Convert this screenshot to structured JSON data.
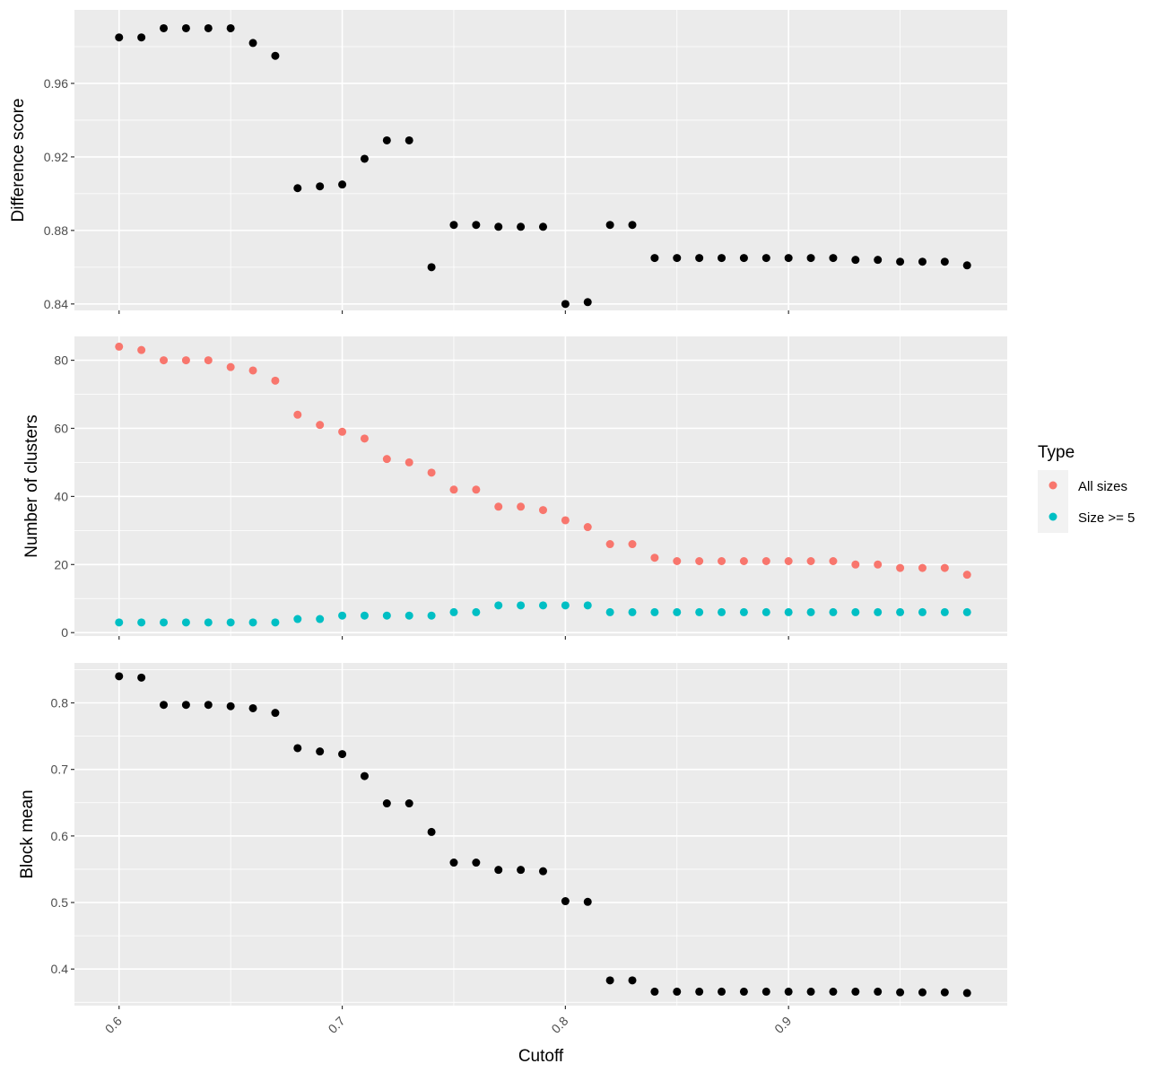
{
  "chart_data": {
    "type": "scatter",
    "shared_x": {
      "label": "Cutoff",
      "ticks": [
        0.6,
        0.7,
        0.8,
        0.9
      ],
      "tick_labels": [
        "0.6",
        "0.7",
        "0.8",
        "0.9"
      ],
      "range": [
        0.58,
        0.998
      ],
      "minor_ticks": [
        0.65,
        0.75,
        0.85,
        0.95
      ],
      "tick_rotation": "-45 degrees"
    },
    "x": [
      0.6,
      0.61,
      0.62,
      0.63,
      0.64,
      0.65,
      0.66,
      0.67,
      0.68,
      0.69,
      0.7,
      0.71,
      0.72,
      0.73,
      0.74,
      0.75,
      0.76,
      0.77,
      0.78,
      0.79,
      0.8,
      0.81,
      0.82,
      0.83,
      0.84,
      0.85,
      0.86,
      0.87,
      0.88,
      0.89,
      0.9,
      0.91,
      0.92,
      0.93,
      0.94,
      0.95,
      0.96,
      0.97,
      0.98
    ],
    "panels": [
      {
        "ylabel": "Difference score",
        "ylim": [
          0.8365,
          1.0
        ],
        "yticks": [
          0.84,
          0.88,
          0.92,
          0.96
        ],
        "ytick_labels": [
          "0.84",
          "0.88",
          "0.92",
          "0.96"
        ],
        "y_minor_ticks": [
          0.86,
          0.9,
          0.94,
          0.98
        ],
        "series": [
          {
            "color": "#000000",
            "values": [
              0.985,
              0.985,
              0.99,
              0.99,
              0.99,
              0.99,
              0.982,
              0.975,
              0.903,
              0.904,
              0.905,
              0.919,
              0.929,
              0.929,
              0.86,
              0.883,
              0.883,
              0.882,
              0.882,
              0.882,
              0.84,
              0.841,
              0.883,
              0.883,
              0.865,
              0.865,
              0.865,
              0.865,
              0.865,
              0.865,
              0.865,
              0.865,
              0.865,
              0.864,
              0.864,
              0.863,
              0.863,
              0.863,
              0.861
            ]
          }
        ]
      },
      {
        "ylabel": "Number of clusters",
        "ylim": [
          -1,
          87
        ],
        "yticks": [
          0,
          20,
          40,
          60,
          80
        ],
        "ytick_labels": [
          "0",
          "20",
          "40",
          "60",
          "80"
        ],
        "y_minor_ticks": [
          10,
          30,
          50,
          70
        ],
        "series": [
          {
            "name": "All sizes",
            "color": "#F8766D",
            "values": [
              84,
              83,
              80,
              80,
              80,
              78,
              77,
              74,
              64,
              61,
              59,
              57,
              51,
              50,
              47,
              42,
              42,
              37,
              37,
              36,
              33,
              31,
              26,
              26,
              22,
              21,
              21,
              21,
              21,
              21,
              21,
              21,
              21,
              20,
              20,
              19,
              19,
              19,
              17
            ]
          },
          {
            "name": "Size >= 5",
            "color": "#00BFC4",
            "values": [
              3,
              3,
              3,
              3,
              3,
              3,
              3,
              3,
              4,
              4,
              5,
              5,
              5,
              5,
              5,
              6,
              6,
              8,
              8,
              8,
              8,
              8,
              6,
              6,
              6,
              6,
              6,
              6,
              6,
              6,
              6,
              6,
              6,
              6,
              6,
              6,
              6,
              6,
              6
            ]
          }
        ]
      },
      {
        "ylabel": "Block mean",
        "ylim": [
          0.345,
          0.86
        ],
        "yticks": [
          0.4,
          0.5,
          0.6,
          0.7,
          0.8
        ],
        "ytick_labels": [
          "0.4",
          "0.5",
          "0.6",
          "0.7",
          "0.8"
        ],
        "y_minor_ticks": [
          0.35,
          0.45,
          0.55,
          0.65,
          0.75,
          0.85
        ],
        "series": [
          {
            "color": "#000000",
            "values": [
              0.84,
              0.838,
              0.797,
              0.797,
              0.797,
              0.795,
              0.792,
              0.785,
              0.732,
              0.727,
              0.723,
              0.69,
              0.649,
              0.649,
              0.606,
              0.56,
              0.56,
              0.549,
              0.549,
              0.547,
              0.502,
              0.501,
              0.383,
              0.383,
              0.366,
              0.366,
              0.366,
              0.366,
              0.366,
              0.366,
              0.366,
              0.366,
              0.366,
              0.366,
              0.366,
              0.365,
              0.365,
              0.365,
              0.364
            ]
          }
        ]
      }
    ],
    "legend": {
      "title": "Type",
      "placement": "right",
      "entries": [
        {
          "label": "All sizes",
          "color": "#F8766D"
        },
        {
          "label": "Size >= 5",
          "color": "#00BFC4"
        }
      ]
    },
    "panel_background": "#EBEBEB",
    "grid_color": "#FFFFFF",
    "grid": true
  }
}
